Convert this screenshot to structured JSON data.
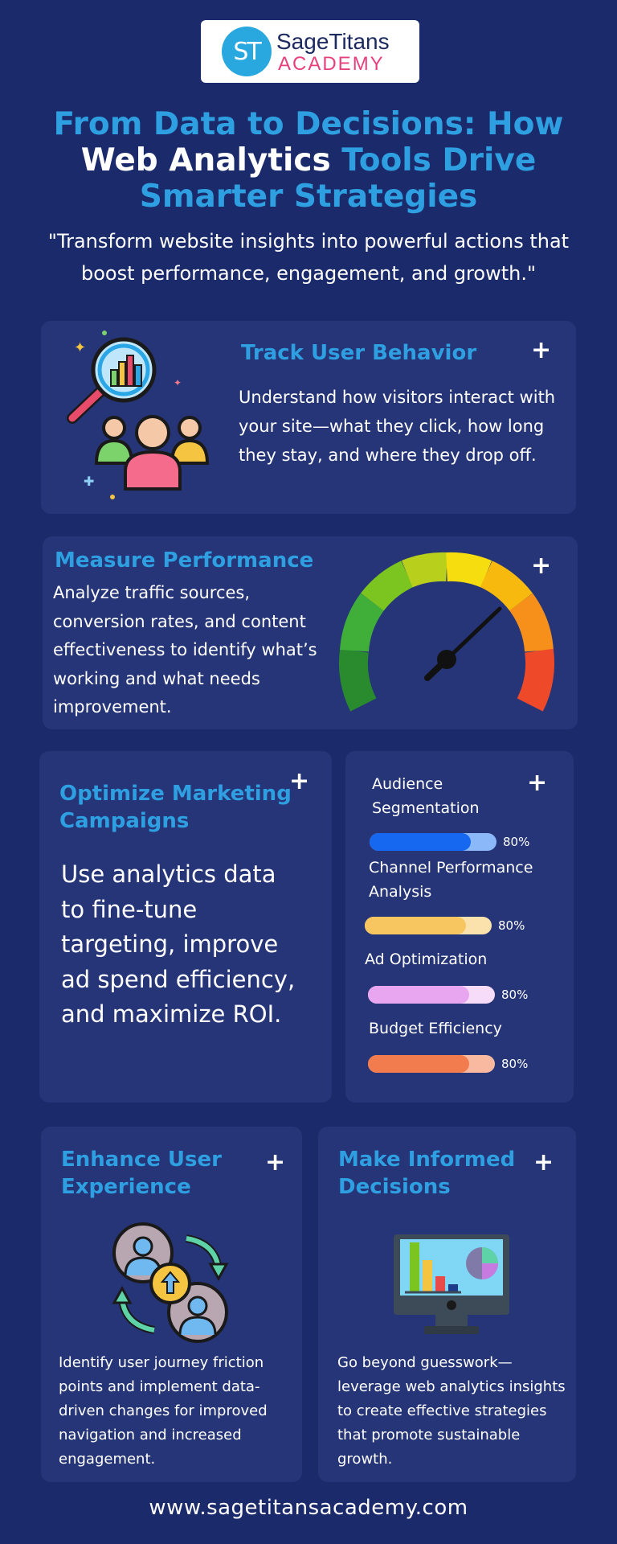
{
  "logo": {
    "monogram": "ST",
    "name": "SageTitans",
    "sub": "ACADEMY"
  },
  "header": {
    "title_part1": "From Data to Decisions: How",
    "title_part2_white": "Web Analytics",
    "title_part2_blue": "Tools Drive",
    "title_part3": "Smarter Strategies",
    "subtitle": "\"Transform website insights into powerful actions that boost performance, engagement, and growth.\""
  },
  "sections": {
    "track": {
      "title": "Track User Behavior",
      "text": "Understand how visitors interact with your site—what they click, how long they stay, and where they drop off.",
      "icon": "magnifier-users-icon"
    },
    "measure": {
      "title": "Measure Performance",
      "text": "Analyze traffic sources, conversion rates, and content effectiveness to identify what’s working and what needs improvement.",
      "icon": "speedometer-icon"
    },
    "optimize": {
      "title": "Optimize Marketing Campaigns",
      "text": "Use analytics data to fine-tune targeting, improve ad spend efficiency, and maximize ROI."
    },
    "bars": [
      {
        "label": "Audience Segmentation",
        "value": 80,
        "pct": "80%",
        "fill": "#1668f0",
        "track": "#8bb8f8"
      },
      {
        "label": "Channel Performance Analysis",
        "value": 80,
        "pct": "80%",
        "fill": "#f8c661",
        "track": "#fbe2ad"
      },
      {
        "label": "Ad Optimization",
        "value": 80,
        "pct": "80%",
        "fill": "#e7a6ef",
        "track": "#f6dcf8"
      },
      {
        "label": "Budget Efficiency",
        "value": 80,
        "pct": "80%",
        "fill": "#f27c4e",
        "track": "#f8b9a0"
      }
    ],
    "enhance": {
      "title": "Enhance User Experience",
      "text": "Identify user journey friction points and implement data-driven changes for improved navigation and increased engagement.",
      "icon": "users-exchange-icon"
    },
    "decisions": {
      "title": "Make Informed Decisions",
      "text": "Go beyond guesswork—leverage web analytics insights to create effective strategies that promote sustainable growth.",
      "icon": "monitor-chart-icon"
    }
  },
  "footer": {
    "url": "www.sagetitansacademy.com"
  },
  "colors": {
    "background": "#1b2a6b",
    "card": "#263577",
    "accent": "#2ea0e2"
  }
}
